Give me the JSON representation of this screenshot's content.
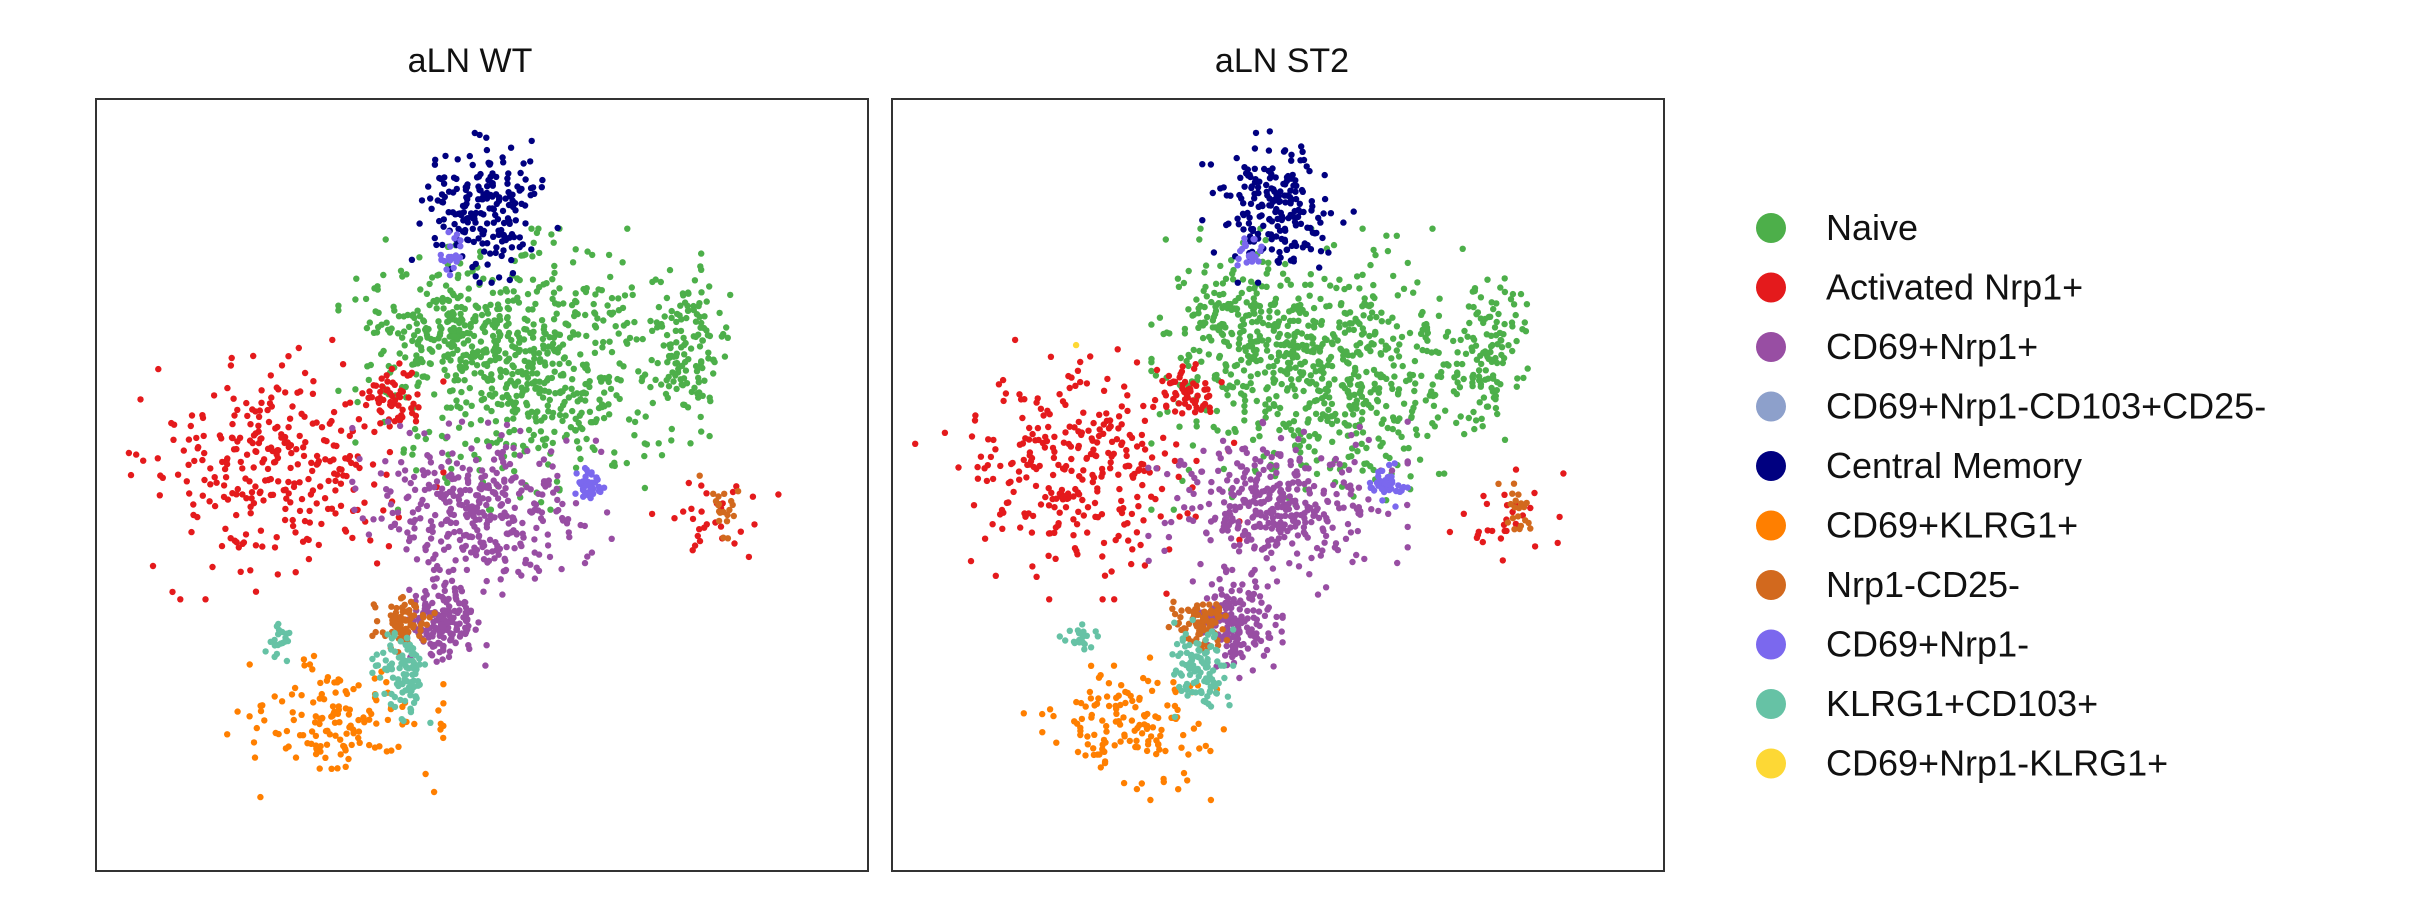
{
  "chart_data": [
    {
      "type": "scatter",
      "title": "aLN WT",
      "clusters": [
        {
          "name": "Naive",
          "region_count": 3
        },
        {
          "name": "Activated Nrp1+",
          "region_count": 3
        },
        {
          "name": "CD69+Nrp1+",
          "region_count": 2
        },
        {
          "name": "Central Memory",
          "region_count": 1
        },
        {
          "name": "CD69+KLRG1+",
          "region_count": 1
        },
        {
          "name": "Nrp1-CD25-",
          "region_count": 2
        },
        {
          "name": "CD69+Nrp1-",
          "region_count": 2
        },
        {
          "name": "KLRG1+CD103+",
          "region_count": 2
        }
      ]
    },
    {
      "type": "scatter",
      "title": "aLN ST2",
      "clusters": [
        {
          "name": "Naive",
          "region_count": 3
        },
        {
          "name": "Activated Nrp1+",
          "region_count": 3
        },
        {
          "name": "CD69+Nrp1+",
          "region_count": 2
        },
        {
          "name": "Central Memory",
          "region_count": 1
        },
        {
          "name": "CD69+KLRG1+",
          "region_count": 1
        },
        {
          "name": "Nrp1-CD25-",
          "region_count": 2
        },
        {
          "name": "CD69+Nrp1-",
          "region_count": 2
        },
        {
          "name": "KLRG1+CD103+",
          "region_count": 2
        },
        {
          "name": "CD69+Nrp1-KLRG1+",
          "region_count": 1
        }
      ]
    }
  ],
  "legend": {
    "placement": "right",
    "entries": [
      {
        "label": "Naive",
        "color": "#4daf4a"
      },
      {
        "label": "Activated Nrp1+",
        "color": "#e41a1c"
      },
      {
        "label": "CD69+Nrp1+",
        "color": "#984ea3"
      },
      {
        "label": "CD69+Nrp1-CD103+CD25-",
        "color": "#8da0cb"
      },
      {
        "label": "Central Memory",
        "color": "#000080"
      },
      {
        "label": "CD69+KLRG1+",
        "color": "#ff7f00"
      },
      {
        "label": "Nrp1-CD25-",
        "color": "#d2691e"
      },
      {
        "label": "CD69+Nrp1-",
        "color": "#7b68ee"
      },
      {
        "label": "KLRG1+CD103+",
        "color": "#66c2a5"
      },
      {
        "label": "CD69+Nrp1-KLRG1+",
        "color": "#fdd835"
      }
    ]
  }
}
